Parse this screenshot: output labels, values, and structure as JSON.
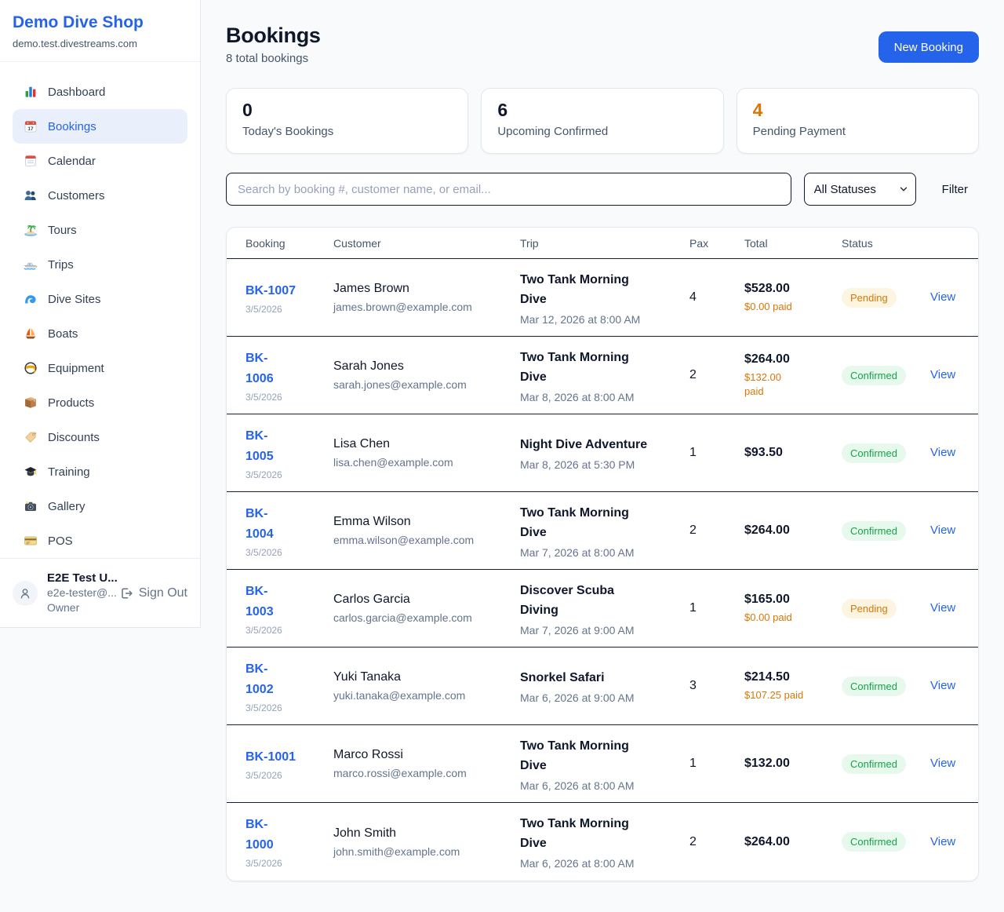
{
  "sidebar": {
    "brand": {
      "name": "Demo Dive Shop",
      "domain": "demo.test.divestreams.com"
    },
    "items": [
      {
        "label": "Dashboard",
        "icon": "bar-chart-icon",
        "active": false
      },
      {
        "label": "Bookings",
        "icon": "bookings-calendar-icon",
        "active": true
      },
      {
        "label": "Calendar",
        "icon": "calendar-icon",
        "active": false
      },
      {
        "label": "Customers",
        "icon": "users-icon",
        "active": false
      },
      {
        "label": "Tours",
        "icon": "island-icon",
        "active": false
      },
      {
        "label": "Trips",
        "icon": "speedboat-icon",
        "active": false
      },
      {
        "label": "Dive Sites",
        "icon": "wave-icon",
        "active": false
      },
      {
        "label": "Boats",
        "icon": "sailboat-icon",
        "active": false
      },
      {
        "label": "Equipment",
        "icon": "diving-mask-icon",
        "active": false
      },
      {
        "label": "Products",
        "icon": "package-icon",
        "active": false
      },
      {
        "label": "Discounts",
        "icon": "tag-icon",
        "active": false
      },
      {
        "label": "Training",
        "icon": "graduation-cap-icon",
        "active": false
      },
      {
        "label": "Gallery",
        "icon": "camera-icon",
        "active": false
      },
      {
        "label": "POS",
        "icon": "credit-card-icon",
        "active": false
      }
    ],
    "user": {
      "name": "E2E Test U...",
      "email": "e2e-tester@...",
      "role": "Owner",
      "sign_out_label": "Sign Out"
    }
  },
  "header": {
    "title": "Bookings",
    "subtitle": "8 total bookings",
    "new_booking_label": "New Booking"
  },
  "stats": [
    {
      "value": "0",
      "label": "Today's Bookings",
      "color": "#0f172a"
    },
    {
      "value": "6",
      "label": "Upcoming Confirmed",
      "color": "#0f172a"
    },
    {
      "value": "4",
      "label": "Pending Payment",
      "color": "#d97706"
    }
  ],
  "filters": {
    "search_placeholder": "Search by booking #, customer name, or email...",
    "status_selected": "All Statuses",
    "filter_label": "Filter"
  },
  "table": {
    "columns": [
      "Booking",
      "Customer",
      "Trip",
      "Pax",
      "Total",
      "Status"
    ],
    "view_label": "View",
    "rows": [
      {
        "id": "BK-1007",
        "id_wrap": false,
        "date": "3/5/2026",
        "customer": "James Brown",
        "email": "james.brown@example.com",
        "trip": "Two Tank Morning Dive",
        "trip_time": "Mar 12, 2026 at 8:00 AM",
        "pax": "4",
        "total": "$528.00",
        "paid": "$0.00 paid",
        "paid_wrap": false,
        "status": "Pending"
      },
      {
        "id": "BK-1006",
        "id_wrap": true,
        "date": "3/5/2026",
        "customer": "Sarah Jones",
        "email": "sarah.jones@example.com",
        "trip": "Two Tank Morning Dive",
        "trip_time": "Mar 8, 2026 at 8:00 AM",
        "pax": "2",
        "total": "$264.00",
        "paid": "$132.00 paid",
        "paid_wrap": true,
        "status": "Confirmed"
      },
      {
        "id": "BK-1005",
        "id_wrap": true,
        "date": "3/5/2026",
        "customer": "Lisa Chen",
        "email": "lisa.chen@example.com",
        "trip": "Night Dive Adventure",
        "trip_time": "Mar 8, 2026 at 5:30 PM",
        "pax": "1",
        "total": "$93.50",
        "paid": "",
        "paid_wrap": false,
        "status": "Confirmed"
      },
      {
        "id": "BK-1004",
        "id_wrap": true,
        "date": "3/5/2026",
        "customer": "Emma Wilson",
        "email": "emma.wilson@example.com",
        "trip": "Two Tank Morning Dive",
        "trip_time": "Mar 7, 2026 at 8:00 AM",
        "pax": "2",
        "total": "$264.00",
        "paid": "",
        "paid_wrap": false,
        "status": "Confirmed"
      },
      {
        "id": "BK-1003",
        "id_wrap": true,
        "date": "3/5/2026",
        "customer": "Carlos Garcia",
        "email": "carlos.garcia@example.com",
        "trip": "Discover Scuba Diving",
        "trip_time": "Mar 7, 2026 at 9:00 AM",
        "pax": "1",
        "total": "$165.00",
        "paid": "$0.00 paid",
        "paid_wrap": false,
        "status": "Pending"
      },
      {
        "id": "BK-1002",
        "id_wrap": true,
        "date": "3/5/2026",
        "customer": "Yuki Tanaka",
        "email": "yuki.tanaka@example.com",
        "trip": "Snorkel Safari",
        "trip_time": "Mar 6, 2026 at 9:00 AM",
        "pax": "3",
        "total": "$214.50",
        "paid": "$107.25 paid",
        "paid_wrap": false,
        "status": "Confirmed"
      },
      {
        "id": "BK-1001",
        "id_wrap": false,
        "date": "3/5/2026",
        "customer": "Marco Rossi",
        "email": "marco.rossi@example.com",
        "trip": "Two Tank Morning Dive",
        "trip_time": "Mar 6, 2026 at 8:00 AM",
        "pax": "1",
        "total": "$132.00",
        "paid": "",
        "paid_wrap": false,
        "status": "Confirmed"
      },
      {
        "id": "BK-1000",
        "id_wrap": true,
        "date": "3/5/2026",
        "customer": "John Smith",
        "email": "john.smith@example.com",
        "trip": "Two Tank Morning Dive",
        "trip_time": "Mar 6, 2026 at 8:00 AM",
        "pax": "2",
        "total": "$264.00",
        "paid": "",
        "paid_wrap": false,
        "status": "Confirmed"
      }
    ]
  }
}
